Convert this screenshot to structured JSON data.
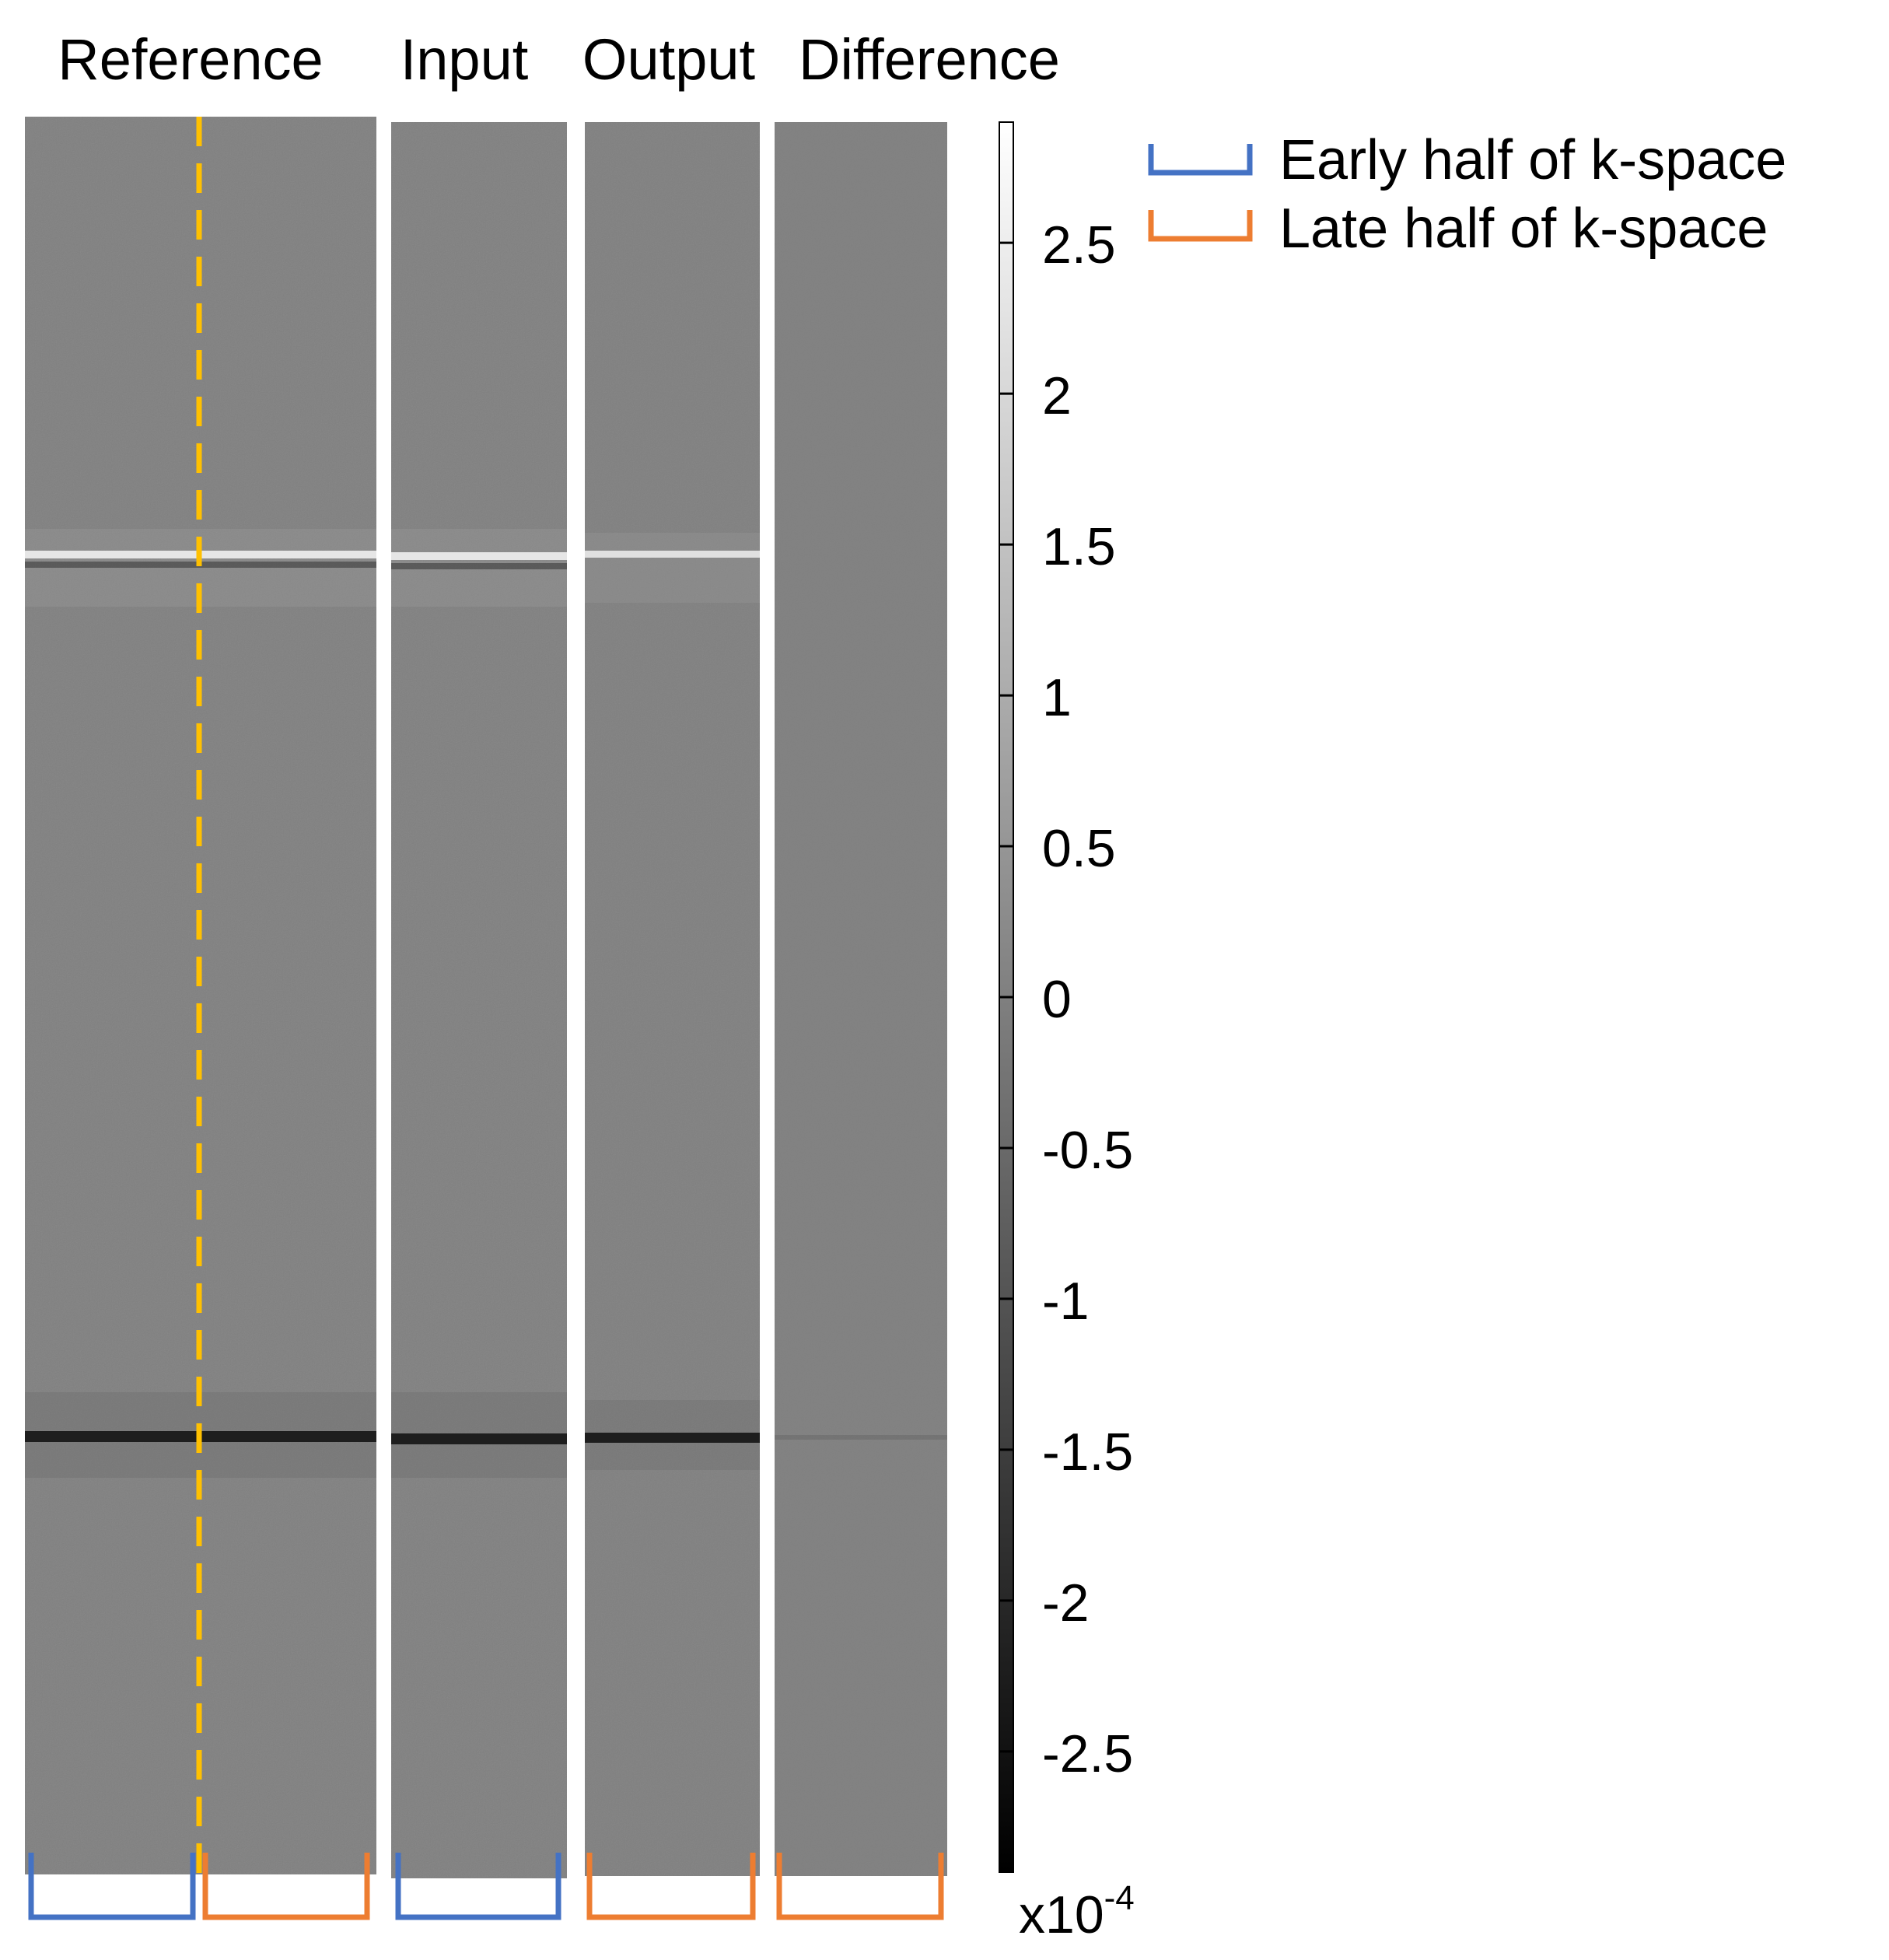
{
  "panels": [
    {
      "title": "Reference",
      "id": "reference",
      "brackets": [
        "early",
        "late"
      ]
    },
    {
      "title": "Input",
      "id": "input",
      "brackets": [
        "early"
      ]
    },
    {
      "title": "Output",
      "id": "output",
      "brackets": [
        "late"
      ]
    },
    {
      "title": "Difference",
      "id": "difference",
      "brackets": [
        "late"
      ]
    }
  ],
  "colorbar": {
    "ticks": [
      "2.5",
      "2",
      "1.5",
      "1",
      "0.5",
      "0",
      "-0.5",
      "-1",
      "-1.5",
      "-2",
      "-2.5"
    ],
    "tick_values": [
      2.5,
      2,
      1.5,
      1,
      0.5,
      0,
      -0.5,
      -1,
      -1.5,
      -2,
      -2.5
    ],
    "range": [
      -2.9,
      2.9
    ],
    "scale_base": "x10",
    "scale_exp": "-4",
    "colormap": "gray"
  },
  "legend": {
    "items": [
      {
        "label": "Early half of k-space",
        "color": "#4472c4",
        "key": "early"
      },
      {
        "label": "Late half of k-space",
        "color": "#ed7d31",
        "key": "late"
      }
    ]
  },
  "divider": {
    "color": "#ffc000",
    "style": "dashed"
  },
  "colors": {
    "panel_bg": "#808080",
    "early": "#4472c4",
    "late": "#ed7d31"
  }
}
